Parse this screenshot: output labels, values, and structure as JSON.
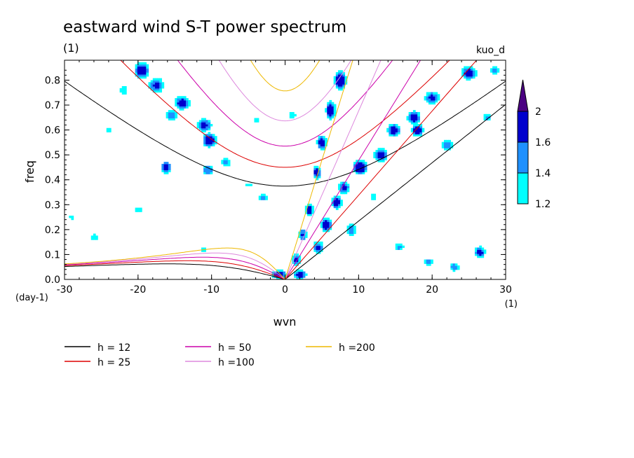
{
  "chart_data": {
    "type": "heatmap",
    "title": "eastward wind S-T power spectrum",
    "title_units": "(1)",
    "subtitle_right": "kuo_d",
    "xlabel": "wvn",
    "ylabel": "freq",
    "x_units": "(1)",
    "y_units": "(day-1)",
    "xlim": [
      -30,
      30
    ],
    "ylim": [
      0,
      0.88
    ],
    "x_ticks": [
      -30,
      -20,
      -10,
      0,
      10,
      20,
      30
    ],
    "x_tick_labels": [
      "-30",
      "-20",
      "-10",
      "0",
      "10",
      "20",
      "30"
    ],
    "y_ticks": [
      0,
      0.1,
      0.2,
      0.3,
      0.4,
      0.5,
      0.6,
      0.7,
      0.8
    ],
    "y_tick_labels": [
      "0.0",
      "0.1",
      "0.2",
      "0.3",
      "0.4",
      "0.5",
      "0.6",
      "0.7",
      "0.8"
    ],
    "colorbar": {
      "levels": [
        1.2,
        1.4,
        1.6,
        2
      ],
      "level_labels": [
        "1.2",
        "1.4",
        "1.6",
        "2"
      ],
      "colors": [
        "#00ffff",
        "#1e90ff",
        "#0000cd",
        "#4b0082"
      ],
      "extend": "max"
    },
    "dispersion_curves": [
      {
        "name": "h = 12",
        "h": 12,
        "color": "#000000"
      },
      {
        "name": "h = 25",
        "h": 25,
        "color": "#dd0000"
      },
      {
        "name": "h = 50",
        "h": 50,
        "color": "#cc00aa"
      },
      {
        "name": "h =100",
        "h": 100,
        "color": "#dd88dd"
      },
      {
        "name": "h =200",
        "h": 200,
        "color": "#eeb800"
      }
    ],
    "clusters": [
      {
        "x": 5.0,
        "y": 0.55,
        "sx": 0.7,
        "sy": 0.03,
        "v": 1.9
      },
      {
        "x": 6.2,
        "y": 0.68,
        "sx": 0.7,
        "sy": 0.04,
        "v": 1.9
      },
      {
        "x": 7.5,
        "y": 0.8,
        "sx": 0.8,
        "sy": 0.04,
        "v": 2.0
      },
      {
        "x": 4.3,
        "y": 0.43,
        "sx": 0.6,
        "sy": 0.03,
        "v": 1.8
      },
      {
        "x": 3.3,
        "y": 0.28,
        "sx": 0.6,
        "sy": 0.03,
        "v": 1.8
      },
      {
        "x": 2.4,
        "y": 0.18,
        "sx": 0.6,
        "sy": 0.03,
        "v": 1.7
      },
      {
        "x": 1.5,
        "y": 0.08,
        "sx": 0.6,
        "sy": 0.025,
        "v": 1.8
      },
      {
        "x": -0.8,
        "y": 0.02,
        "sx": 1.0,
        "sy": 0.02,
        "v": 1.9
      },
      {
        "x": 2.0,
        "y": 0.02,
        "sx": 1.0,
        "sy": 0.02,
        "v": 1.8
      },
      {
        "x": 4.5,
        "y": 0.13,
        "sx": 0.8,
        "sy": 0.03,
        "v": 1.7
      },
      {
        "x": 5.6,
        "y": 0.22,
        "sx": 0.8,
        "sy": 0.03,
        "v": 1.9
      },
      {
        "x": 7.0,
        "y": 0.31,
        "sx": 0.8,
        "sy": 0.03,
        "v": 1.8
      },
      {
        "x": 8.0,
        "y": 0.37,
        "sx": 0.9,
        "sy": 0.03,
        "v": 1.7
      },
      {
        "x": 10.2,
        "y": 0.45,
        "sx": 1.0,
        "sy": 0.03,
        "v": 2.0
      },
      {
        "x": 13.0,
        "y": 0.5,
        "sx": 1.0,
        "sy": 0.03,
        "v": 1.8
      },
      {
        "x": 14.8,
        "y": 0.6,
        "sx": 1.0,
        "sy": 0.03,
        "v": 1.8
      },
      {
        "x": 17.5,
        "y": 0.65,
        "sx": 1.0,
        "sy": 0.03,
        "v": 1.8
      },
      {
        "x": 20.0,
        "y": 0.73,
        "sx": 1.2,
        "sy": 0.03,
        "v": 1.7
      },
      {
        "x": 25.0,
        "y": 0.83,
        "sx": 1.2,
        "sy": 0.03,
        "v": 1.8
      },
      {
        "x": 9.0,
        "y": 0.2,
        "sx": 0.8,
        "sy": 0.03,
        "v": 1.6
      },
      {
        "x": 18.0,
        "y": 0.6,
        "sx": 0.9,
        "sy": 0.025,
        "v": 1.9
      },
      {
        "x": -19.5,
        "y": 0.84,
        "sx": 1.0,
        "sy": 0.035,
        "v": 1.9
      },
      {
        "x": -17.5,
        "y": 0.78,
        "sx": 1.2,
        "sy": 0.035,
        "v": 1.7
      },
      {
        "x": -14.0,
        "y": 0.71,
        "sx": 1.2,
        "sy": 0.03,
        "v": 1.8
      },
      {
        "x": -11.0,
        "y": 0.62,
        "sx": 1.2,
        "sy": 0.03,
        "v": 1.7
      },
      {
        "x": -10.3,
        "y": 0.56,
        "sx": 1.0,
        "sy": 0.03,
        "v": 1.9
      },
      {
        "x": -15.5,
        "y": 0.66,
        "sx": 1.0,
        "sy": 0.03,
        "v": 1.6
      },
      {
        "x": -16.2,
        "y": 0.45,
        "sx": 0.7,
        "sy": 0.025,
        "v": 1.9
      },
      {
        "x": -10.5,
        "y": 0.44,
        "sx": 1.0,
        "sy": 0.025,
        "v": 1.6
      },
      {
        "x": -8.0,
        "y": 0.47,
        "sx": 0.9,
        "sy": 0.025,
        "v": 1.5
      },
      {
        "x": -22.0,
        "y": 0.76,
        "sx": 1.0,
        "sy": 0.025,
        "v": 1.4
      },
      {
        "x": -24.0,
        "y": 0.6,
        "sx": 0.8,
        "sy": 0.02,
        "v": 1.4
      },
      {
        "x": 15.5,
        "y": 0.13,
        "sx": 0.9,
        "sy": 0.02,
        "v": 1.5
      },
      {
        "x": 26.5,
        "y": 0.11,
        "sx": 0.8,
        "sy": 0.025,
        "v": 1.8
      },
      {
        "x": 19.5,
        "y": 0.07,
        "sx": 0.8,
        "sy": 0.02,
        "v": 1.5
      },
      {
        "x": 23.0,
        "y": 0.05,
        "sx": 0.8,
        "sy": 0.02,
        "v": 1.6
      },
      {
        "x": -20.0,
        "y": 0.28,
        "sx": 0.9,
        "sy": 0.02,
        "v": 1.4
      },
      {
        "x": -3.0,
        "y": 0.33,
        "sx": 0.9,
        "sy": 0.02,
        "v": 1.5
      },
      {
        "x": -5.0,
        "y": 0.38,
        "sx": 0.9,
        "sy": 0.02,
        "v": 1.3
      },
      {
        "x": 27.5,
        "y": 0.65,
        "sx": 0.8,
        "sy": 0.02,
        "v": 1.5
      },
      {
        "x": 22.0,
        "y": 0.54,
        "sx": 1.0,
        "sy": 0.025,
        "v": 1.6
      },
      {
        "x": 1.0,
        "y": 0.66,
        "sx": 0.9,
        "sy": 0.02,
        "v": 1.4
      },
      {
        "x": -26.0,
        "y": 0.17,
        "sx": 0.8,
        "sy": 0.02,
        "v": 1.4
      },
      {
        "x": -29.0,
        "y": 0.25,
        "sx": 0.8,
        "sy": 0.02,
        "v": 1.3
      },
      {
        "x": -4.0,
        "y": 0.64,
        "sx": 1.0,
        "sy": 0.02,
        "v": 1.3
      },
      {
        "x": 28.5,
        "y": 0.84,
        "sx": 0.8,
        "sy": 0.02,
        "v": 1.5
      },
      {
        "x": -11.0,
        "y": 0.12,
        "sx": 0.8,
        "sy": 0.02,
        "v": 1.3
      },
      {
        "x": 12.0,
        "y": 0.33,
        "sx": 0.8,
        "sy": 0.02,
        "v": 1.4
      }
    ]
  }
}
